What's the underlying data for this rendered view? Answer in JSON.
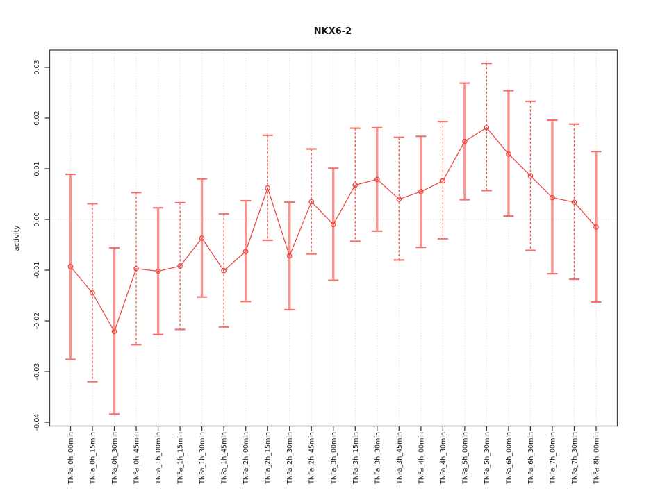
{
  "chart": {
    "title": "NKX6-2",
    "y_axis_label": "activity",
    "colors": {
      "series_red": "#ef4540",
      "errorbar_solid": "#fb938f",
      "errorbar_dashed": "#f15550",
      "errorbar_cap": "#f4716c",
      "gridline_grey": "#d2d2d2",
      "axis_black": "#3d3d3d",
      "background": "#ffffff"
    },
    "y_tick_labels": [
      "0.03",
      "0.02",
      "0.01",
      "0.00",
      "-0.01",
      "-0.02",
      "-0.03",
      "-0.04"
    ]
  },
  "chart_data": {
    "type": "line",
    "title": "NKX6-2",
    "xlabel": "",
    "ylabel": "activity",
    "ylim": [
      -0.041,
      0.033
    ],
    "yticks": [
      0.03,
      0.02,
      0.01,
      0.0,
      -0.01,
      -0.02,
      -0.03,
      -0.04
    ],
    "grid": "vertical dotted gridline at every category; horizontal dotted line at y=0 only",
    "legend": "none",
    "marker": "open-circle",
    "categories": [
      "TNFa_0h_00min",
      "TNFa_0h_15min",
      "TNFa_0h_30min",
      "TNFa_0h_45min",
      "TNFa_1h_00min",
      "TNFa_1h_15min",
      "TNFa_1h_30min",
      "TNFa_1h_45min",
      "TNFa_2h_00min",
      "TNFa_2h_15min",
      "TNFa_2h_30min",
      "TNFa_2h_45min",
      "TNFa_3h_00min",
      "TNFa_3h_15min",
      "TNFa_3h_30min",
      "TNFa_3h_45min",
      "TNFa_4h_00min",
      "TNFa_4h_30min",
      "TNFa_5h_00min",
      "TNFa_5h_30min",
      "TNFa_6h_00min",
      "TNFa_6h_30min",
      "TNFa_7h_00min",
      "TNFa_7h_30min",
      "TNFa_8h_00min"
    ],
    "series": [
      {
        "name": "activity",
        "values": [
          -0.0093,
          -0.0145,
          -0.0221,
          -0.0097,
          -0.0102,
          -0.0092,
          -0.0037,
          -0.0101,
          -0.0063,
          0.0062,
          -0.0072,
          0.0035,
          -0.001,
          0.0068,
          0.0079,
          0.004,
          0.0055,
          0.0076,
          0.0154,
          0.0181,
          0.0129,
          0.0086,
          0.0043,
          0.0034,
          -0.0015
        ]
      },
      {
        "name": "error_upper",
        "values": [
          0.0089,
          0.0031,
          -0.0056,
          0.0053,
          0.0023,
          0.0033,
          0.008,
          0.0011,
          0.0037,
          0.0166,
          0.0034,
          0.0139,
          0.0101,
          0.018,
          0.0181,
          0.0162,
          0.0164,
          0.0193,
          0.0269,
          0.0308,
          0.0254,
          0.0233,
          0.0196,
          0.0188,
          0.0134
        ]
      },
      {
        "name": "error_lower",
        "values": [
          -0.0276,
          -0.032,
          -0.0384,
          -0.0247,
          -0.0227,
          -0.0217,
          -0.0153,
          -0.0212,
          -0.0162,
          -0.0041,
          -0.0178,
          -0.0068,
          -0.012,
          -0.0043,
          -0.0023,
          -0.008,
          -0.0055,
          -0.0038,
          0.0039,
          0.0057,
          0.0007,
          -0.0061,
          -0.0107,
          -0.0118,
          -0.0163
        ]
      }
    ]
  }
}
